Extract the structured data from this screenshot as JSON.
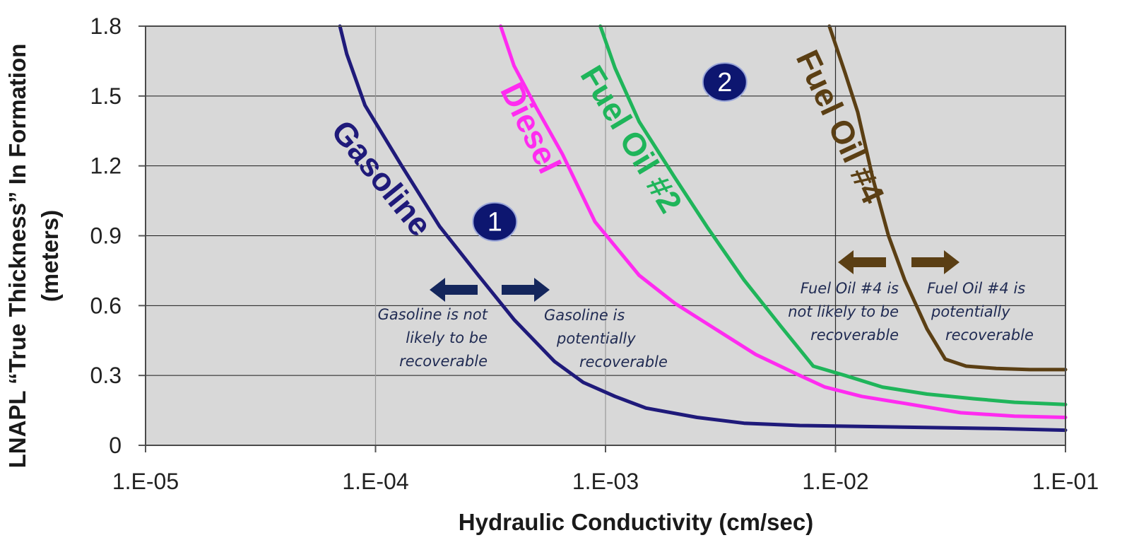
{
  "chart_data": {
    "type": "line",
    "xlabel": "Hydraulic Conductivity (cm/sec)",
    "ylabel_line1": "LNAPL “True Thickness” In Formation",
    "ylabel_line2": "(meters)",
    "x_scale": "log",
    "xlim": [
      1e-05,
      0.1
    ],
    "ylim": [
      0,
      1.8
    ],
    "grid": true,
    "x_ticks": [
      {
        "value": 1e-05,
        "label": "1.E-05"
      },
      {
        "value": 0.0001,
        "label": "1.E-04"
      },
      {
        "value": 0.001,
        "label": "1.E-03"
      },
      {
        "value": 0.01,
        "label": "1.E-02"
      },
      {
        "value": 0.1,
        "label": "1.E-01"
      }
    ],
    "y_ticks": [
      {
        "value": 0,
        "label": "0"
      },
      {
        "value": 0.3,
        "label": "0.3"
      },
      {
        "value": 0.6,
        "label": "0.6"
      },
      {
        "value": 0.9,
        "label": "0.9"
      },
      {
        "value": 1.2,
        "label": "1.2"
      },
      {
        "value": 1.5,
        "label": "1.5"
      },
      {
        "value": 1.8,
        "label": "1.8"
      }
    ],
    "series": [
      {
        "name": "Gasoline",
        "color": "#1f1a7a",
        "points": [
          [
            7e-05,
            1.8
          ],
          [
            7.5e-05,
            1.68
          ],
          [
            9e-05,
            1.46
          ],
          [
            0.00013,
            1.2
          ],
          [
            0.00019,
            0.94
          ],
          [
            0.00028,
            0.73
          ],
          [
            0.0004,
            0.54
          ],
          [
            0.0006,
            0.36
          ],
          [
            0.0008,
            0.27
          ],
          [
            0.0011,
            0.21
          ],
          [
            0.0015,
            0.16
          ],
          [
            0.0025,
            0.12
          ],
          [
            0.004,
            0.095
          ],
          [
            0.007,
            0.085
          ],
          [
            0.015,
            0.08
          ],
          [
            0.05,
            0.072
          ],
          [
            0.1,
            0.065
          ]
        ]
      },
      {
        "name": "Diesel",
        "color": "#ff2bf0",
        "points": [
          [
            0.00035,
            1.8
          ],
          [
            0.0004,
            1.63
          ],
          [
            0.0005,
            1.45
          ],
          [
            0.00065,
            1.25
          ],
          [
            0.0009,
            0.96
          ],
          [
            0.0014,
            0.73
          ],
          [
            0.002,
            0.61
          ],
          [
            0.003,
            0.5
          ],
          [
            0.0045,
            0.39
          ],
          [
            0.007,
            0.3
          ],
          [
            0.009,
            0.25
          ],
          [
            0.013,
            0.21
          ],
          [
            0.02,
            0.18
          ],
          [
            0.035,
            0.14
          ],
          [
            0.06,
            0.125
          ],
          [
            0.1,
            0.12
          ]
        ]
      },
      {
        "name": "Fuel Oil #2",
        "color": "#1fb55a",
        "points": [
          [
            0.00095,
            1.8
          ],
          [
            0.0011,
            1.62
          ],
          [
            0.0014,
            1.39
          ],
          [
            0.002,
            1.15
          ],
          [
            0.0028,
            0.93
          ],
          [
            0.004,
            0.71
          ],
          [
            0.0058,
            0.51
          ],
          [
            0.008,
            0.34
          ],
          [
            0.011,
            0.3
          ],
          [
            0.016,
            0.25
          ],
          [
            0.025,
            0.22
          ],
          [
            0.04,
            0.2
          ],
          [
            0.06,
            0.185
          ],
          [
            0.1,
            0.175
          ]
        ]
      },
      {
        "name": "Fuel Oil #4",
        "color": "#5b3f14",
        "points": [
          [
            0.0094,
            1.8
          ],
          [
            0.011,
            1.6
          ],
          [
            0.0125,
            1.43
          ],
          [
            0.0145,
            1.15
          ],
          [
            0.017,
            0.9
          ],
          [
            0.02,
            0.71
          ],
          [
            0.025,
            0.5
          ],
          [
            0.03,
            0.37
          ],
          [
            0.037,
            0.34
          ],
          [
            0.05,
            0.33
          ],
          [
            0.07,
            0.325
          ],
          [
            0.1,
            0.325
          ]
        ]
      }
    ],
    "curve_labels": [
      {
        "text": "Gasoline",
        "series": "Gasoline"
      },
      {
        "text": "Diesel",
        "series": "Diesel"
      },
      {
        "text": "Fuel Oil #2",
        "series": "Fuel Oil #2"
      },
      {
        "text": "Fuel Oil #4",
        "series": "Fuel Oil #4"
      }
    ],
    "zone_badges": [
      {
        "label": "1",
        "x": 0.00033,
        "y": 0.96
      },
      {
        "label": "2",
        "x": 0.0033,
        "y": 1.56
      }
    ],
    "annotations": [
      {
        "lines": [
          "Gasoline is not",
          "likely to be",
          "recoverable"
        ],
        "color": "#1f2a52"
      },
      {
        "lines": [
          "Gasoline is",
          "potentially",
          "recoverable"
        ],
        "color": "#1f2a52"
      },
      {
        "lines": [
          "Fuel Oil #4 is",
          "not likely to be",
          "recoverable"
        ],
        "color": "#1f2a52"
      },
      {
        "lines": [
          "Fuel Oil #4 is",
          "potentially",
          "recoverable"
        ],
        "color": "#1f2a52"
      }
    ],
    "arrow_colors": {
      "gasoline": "#14265c",
      "fuel_oil_4": "#5b3f14"
    },
    "plot_background": "#d8d8d8"
  }
}
